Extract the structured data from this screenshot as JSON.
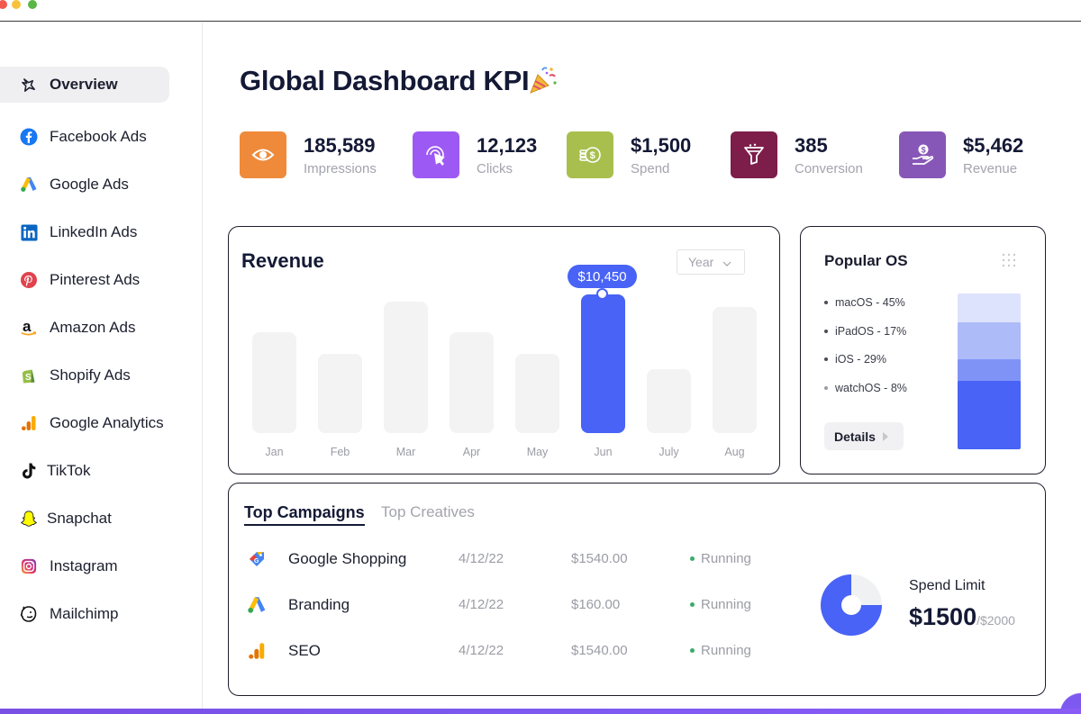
{
  "sidebar": {
    "items": [
      {
        "label": "Overview",
        "icon": "sparkle-icon",
        "active": true
      },
      {
        "label": "Facebook Ads",
        "icon": "facebook-icon"
      },
      {
        "label": "Google Ads",
        "icon": "google-ads-icon"
      },
      {
        "label": "LinkedIn Ads",
        "icon": "linkedin-icon"
      },
      {
        "label": "Pinterest Ads",
        "icon": "pinterest-icon"
      },
      {
        "label": "Amazon Ads",
        "icon": "amazon-icon"
      },
      {
        "label": "Shopify Ads",
        "icon": "shopify-icon"
      },
      {
        "label": "Google Analytics",
        "icon": "google-analytics-icon"
      },
      {
        "label": "TikTok",
        "icon": "tiktok-icon"
      },
      {
        "label": "Snapchat",
        "icon": "snapchat-icon"
      },
      {
        "label": "Instagram",
        "icon": "instagram-icon"
      },
      {
        "label": "Mailchimp",
        "icon": "mailchimp-icon"
      }
    ]
  },
  "header": {
    "title": "Global Dashboard KPI",
    "title_icon": "party-popper-icon"
  },
  "kpis": [
    {
      "value": "185,589",
      "label": "Impressions",
      "icon": "eye-icon",
      "color": "#ee8a3a"
    },
    {
      "value": "12,123",
      "label": "Clicks",
      "icon": "cursor-click-icon",
      "color": "#9d59f3"
    },
    {
      "value": "$1,500",
      "label": "Spend",
      "icon": "coins-icon",
      "color": "#a8bf4e"
    },
    {
      "value": "385",
      "label": "Conversion",
      "icon": "funnel-icon",
      "color": "#7d1d4a"
    },
    {
      "value": "$5,462",
      "label": "Revenue",
      "icon": "hand-coin-icon",
      "color": "#8757b8"
    }
  ],
  "revenue": {
    "title": "Revenue",
    "period": "Year",
    "tooltip": "$10,450",
    "accent": "#4863f5"
  },
  "chart_data": {
    "type": "bar",
    "title": "Revenue",
    "categories": [
      "Jan",
      "Feb",
      "Mar",
      "Apr",
      "May",
      "Jun",
      "July",
      "Aug"
    ],
    "values": [
      7600,
      6000,
      9900,
      7600,
      6000,
      10450,
      4800,
      9500
    ],
    "ylim": [
      0,
      10450
    ],
    "highlight": "Jun",
    "data_labels": {
      "Jun": "$10,450"
    },
    "grid": false
  },
  "popular_os": {
    "title": "Popular OS",
    "menu_icon": "grid-dots-icon",
    "items": [
      {
        "label": "macOS - 45%",
        "share": 45,
        "color": "#dde2fd"
      },
      {
        "label": "iPadOS - 17%",
        "share": 17,
        "color": "#aebbf9"
      },
      {
        "label": "iOS - 29%",
        "share": 29,
        "color": "#7f93f7"
      },
      {
        "label": "watchOS - 8%",
        "share": 8,
        "color": "#4863f5"
      }
    ],
    "details_label": "Details"
  },
  "campaigns": {
    "tabs": [
      "Top Campaigns",
      "Top Creatives"
    ],
    "rows": [
      {
        "name": "Google Shopping",
        "date": "4/12/22",
        "amount": "$1540.00",
        "status": "Running",
        "icon": "google-shopping-icon"
      },
      {
        "name": "Branding",
        "date": "4/12/22",
        "amount": "$160.00",
        "status": "Running",
        "icon": "google-ads-icon"
      },
      {
        "name": "SEO",
        "date": "4/12/22",
        "amount": "$1540.00",
        "status": "Running",
        "icon": "google-analytics-icon"
      }
    ],
    "spend": {
      "label": "Spend Limit",
      "value": "$1500",
      "limit": "/$2000",
      "spent": 1500,
      "total": 2000
    }
  }
}
